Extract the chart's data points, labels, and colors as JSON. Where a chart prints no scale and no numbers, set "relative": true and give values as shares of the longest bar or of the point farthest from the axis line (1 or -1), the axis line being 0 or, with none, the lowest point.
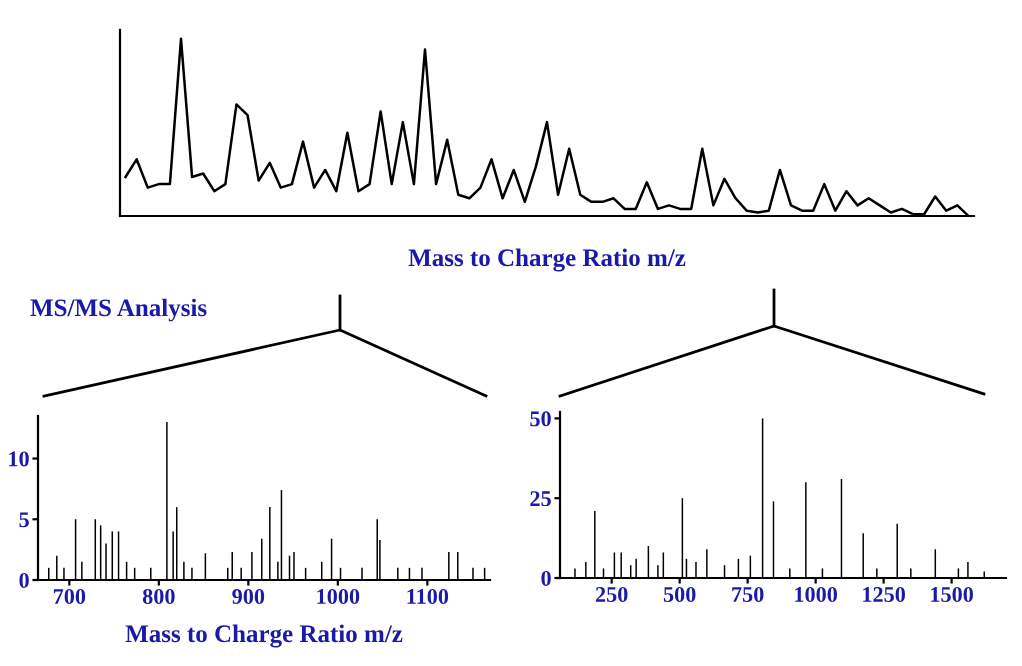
{
  "chart_data": [
    {
      "type": "line",
      "relative": true,
      "xlabel": "Mass to Charge Ratio m/z",
      "categories": [
        null,
        null,
        null,
        null,
        null,
        null,
        null,
        null,
        null,
        null,
        null,
        null,
        null,
        null,
        null,
        null,
        null,
        null,
        null,
        null,
        null,
        null,
        null,
        null,
        null,
        null,
        null,
        null,
        null,
        null,
        null,
        null,
        null,
        null,
        null,
        null,
        null,
        null,
        null,
        null,
        null,
        null,
        null,
        null,
        null,
        null,
        null,
        null,
        null,
        null,
        null,
        null,
        null,
        null,
        null,
        null,
        null,
        null,
        null,
        null,
        null,
        null,
        null,
        null,
        null,
        null,
        null,
        null,
        null,
        null,
        null,
        null,
        null,
        null,
        null,
        null,
        null
      ],
      "series": [
        {
          "color": "#000000",
          "values": [
            0.22,
            0.32,
            0.16,
            0.18,
            0.18,
            1.0,
            0.22,
            0.24,
            0.14,
            0.18,
            0.63,
            0.57,
            0.2,
            0.3,
            0.16,
            0.18,
            0.42,
            0.16,
            0.26,
            0.14,
            0.47,
            0.14,
            0.18,
            0.59,
            0.18,
            0.53,
            0.18,
            0.94,
            0.18,
            0.43,
            0.12,
            0.1,
            0.16,
            0.32,
            0.1,
            0.26,
            0.08,
            0.28,
            0.53,
            0.12,
            0.38,
            0.12,
            0.08,
            0.08,
            0.1,
            0.04,
            0.04,
            0.19,
            0.04,
            0.06,
            0.04,
            0.04,
            0.38,
            0.06,
            0.21,
            0.1,
            0.03,
            0.02,
            0.03,
            0.26,
            0.06,
            0.03,
            0.03,
            0.18,
            0.03,
            0.14,
            0.06,
            0.1,
            0.06,
            0.02,
            0.04,
            0.01,
            0.01,
            0.11,
            0.03,
            0.06,
            0
          ]
        }
      ]
    },
    {
      "type": "bar",
      "xlabel": "Mass to Charge Ratio m/z",
      "annotations": [
        "MS/MS Analysis"
      ],
      "xlim": [
        665,
        1170
      ],
      "xticks": [
        700,
        800,
        900,
        1000,
        1100
      ],
      "ylim": [
        0,
        13.5
      ],
      "yticks": [
        0,
        5,
        10
      ],
      "x": [
        677,
        686,
        694,
        707,
        714,
        729,
        735,
        741,
        748,
        755,
        764,
        773,
        791,
        809,
        816,
        820,
        828,
        837,
        852,
        877,
        882,
        892,
        904,
        915,
        924,
        933,
        937,
        946,
        951,
        964,
        982,
        993,
        1003,
        1027,
        1044,
        1047,
        1067,
        1080,
        1094,
        1124,
        1134,
        1151,
        1164
      ],
      "series": [
        {
          "color": "#000000",
          "values": [
            1,
            2,
            1,
            5,
            1.5,
            5,
            4.5,
            3,
            4,
            4,
            1.5,
            1,
            1,
            13,
            4,
            6,
            1.5,
            1,
            2.2,
            1,
            2.3,
            1,
            2.3,
            3.4,
            6,
            1.5,
            7.4,
            2,
            2.3,
            1,
            1.5,
            3.4,
            1,
            1,
            5,
            3.3,
            1,
            1,
            1,
            2.3,
            2.3,
            1,
            1
          ]
        }
      ]
    },
    {
      "type": "bar",
      "xlim": [
        60,
        1700
      ],
      "xticks": [
        250,
        500,
        750,
        1000,
        1250,
        1500
      ],
      "ylim": [
        0,
        52
      ],
      "yticks": [
        0,
        25,
        50
      ],
      "x": [
        115,
        155,
        188,
        220,
        260,
        285,
        320,
        340,
        385,
        420,
        440,
        510,
        525,
        560,
        600,
        665,
        716,
        760,
        805,
        845,
        905,
        964,
        1025,
        1095,
        1175,
        1225,
        1300,
        1350,
        1440,
        1525,
        1560,
        1620
      ],
      "series": [
        {
          "color": "#000000",
          "values": [
            3,
            5,
            21,
            3,
            8,
            8,
            4,
            6,
            10,
            4,
            8,
            25,
            6,
            5,
            9,
            4,
            6,
            7,
            50,
            24,
            3,
            30,
            3,
            31,
            14,
            3,
            17,
            3,
            9,
            3,
            5,
            2
          ]
        }
      ]
    }
  ]
}
